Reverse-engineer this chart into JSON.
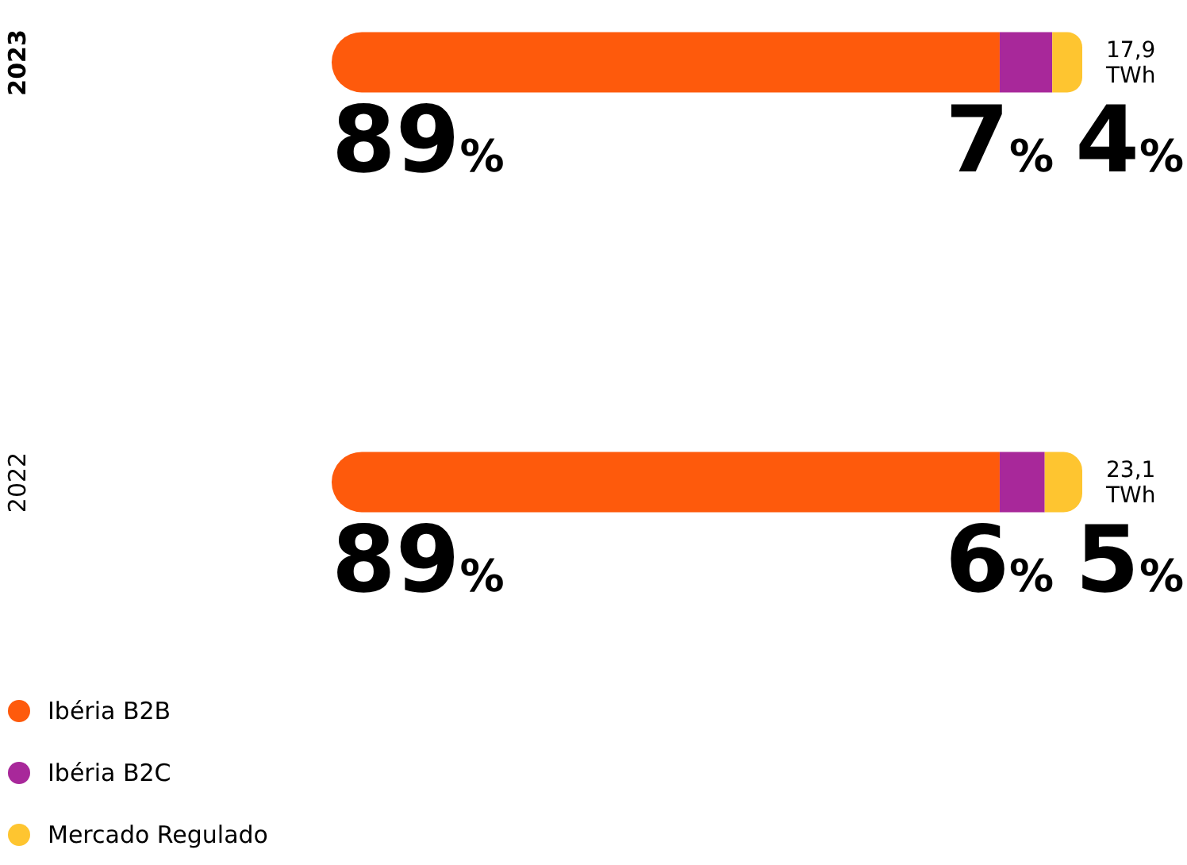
{
  "chart_data": {
    "type": "bar",
    "orientation": "horizontal",
    "stacked": true,
    "categories": [
      "2023",
      "2022"
    ],
    "series": [
      {
        "name": "Ibéria B2B",
        "color": "#fe5a0c",
        "values": [
          89,
          89
        ],
        "value_labels": [
          "89%",
          "89%"
        ]
      },
      {
        "name": "Ibéria B2C",
        "color": "#a8289a",
        "values": [
          7,
          6
        ],
        "value_labels": [
          "7%",
          "6%"
        ]
      },
      {
        "name": "Mercado Regulado",
        "color": "#fec530",
        "values": [
          4,
          5
        ],
        "value_labels": [
          "4%",
          "5%"
        ]
      }
    ],
    "annotations": [
      "17,9 TWh",
      "23,1 TWh"
    ],
    "tick_labels": "y",
    "legend": "bottom left"
  }
}
